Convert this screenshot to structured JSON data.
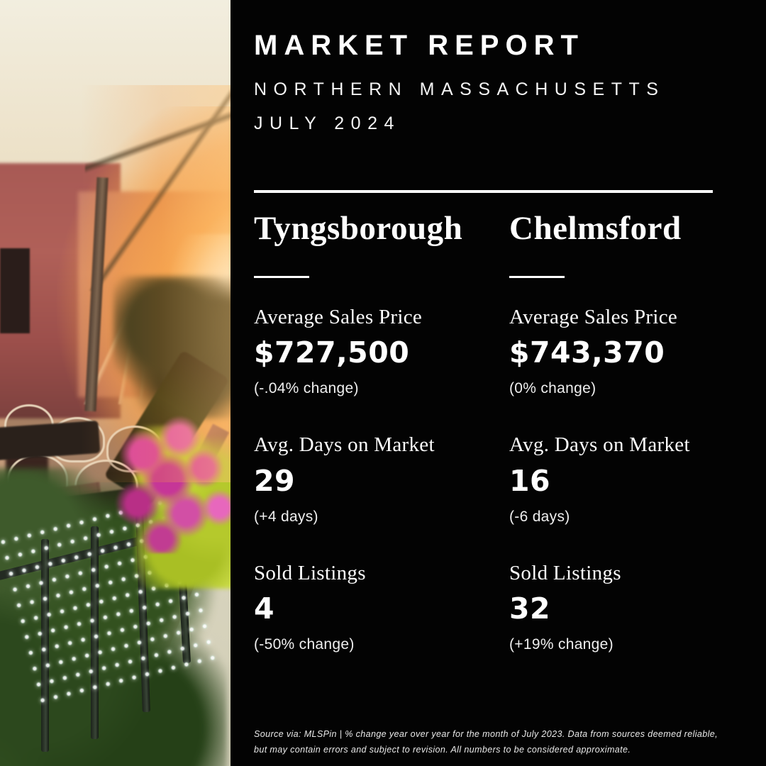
{
  "header": {
    "title": "MARKET REPORT",
    "region": "NORTHERN MASSACHUSETTS",
    "date": "JULY 2024"
  },
  "columns": [
    {
      "city": "Tyngsborough",
      "stats": [
        {
          "label": "Average Sales Price",
          "value": "$727,500",
          "change": "(-.04% change)"
        },
        {
          "label": "Avg. Days on Market",
          "value": "29",
          "change": "(+4 days)"
        },
        {
          "label": "Sold Listings",
          "value": "4",
          "change": "(-50% change)"
        }
      ]
    },
    {
      "city": "Chelmsford",
      "stats": [
        {
          "label": "Average Sales Price",
          "value": "$743,370",
          "change": "(0% change)"
        },
        {
          "label": "Avg. Days on Market",
          "value": "16",
          "change": "(-6 days)"
        },
        {
          "label": "Sold Listings",
          "value": "32",
          "change": "(+19% change)"
        }
      ]
    }
  ],
  "footer": {
    "disclaimer": "Source via: MLSPin | % change year over year for the month of July 2023. Data from sources deemed reliable, but may contain errors and subject to revision. All numbers to be considered approximate."
  },
  "photo": {
    "description": "Sunset street scene with outdoor cafe tables, brick rowhouses, pink petunias and a string-light fence"
  },
  "colors": {
    "background": "#030303",
    "text": "#ffffff",
    "photo_sun": "#f8ab54",
    "photo_flowers": "#d944a6",
    "photo_foliage": "#b5c92c"
  }
}
